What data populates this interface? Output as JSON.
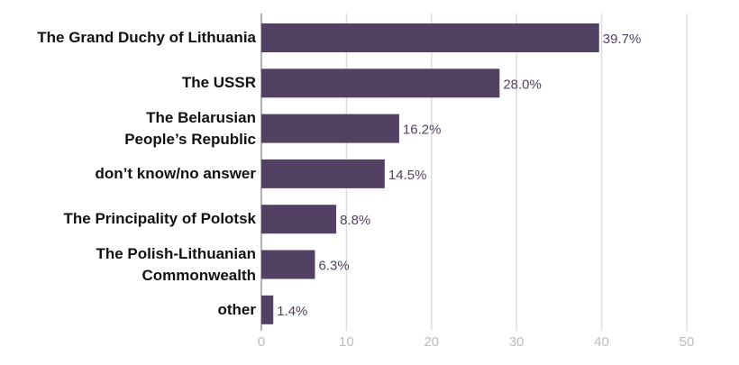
{
  "chart_data": {
    "type": "bar",
    "orientation": "horizontal",
    "categories": [
      "The Grand Duchy of Lithuania",
      "The USSR",
      "The Belarusian\nPeople’s Republic",
      "don’t know/no answer",
      "The Principality of Polotsk",
      "The Polish-Lithuanian\nCommonwealth",
      "other"
    ],
    "values": [
      39.7,
      28.0,
      16.2,
      14.5,
      8.8,
      6.3,
      1.4
    ],
    "value_labels": [
      "39.7%",
      "28.0%",
      "16.2%",
      "14.5%",
      "8.8%",
      "6.3%",
      "1.4%"
    ],
    "color": "#534163",
    "xlim": [
      0,
      50
    ],
    "xticks": [
      0,
      10,
      20,
      30,
      40,
      50
    ],
    "grid": true
  }
}
